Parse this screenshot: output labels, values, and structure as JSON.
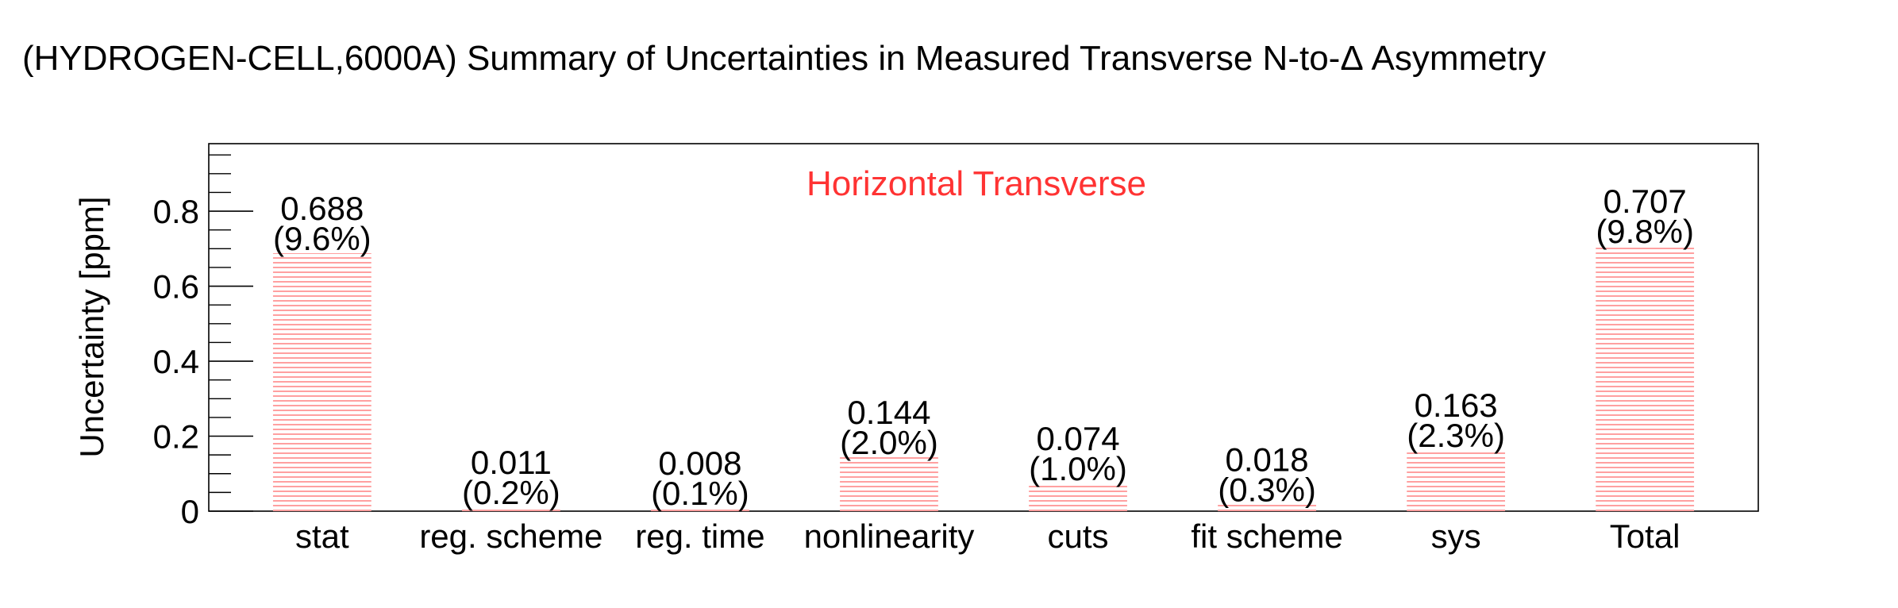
{
  "chart_data": {
    "type": "bar",
    "title": "(HYDROGEN-CELL,6000A) Summary of Uncertainties in Measured Transverse N-to-Δ Asymmetry",
    "annotation": "Horizontal Transverse",
    "xlabel": "",
    "ylabel": "Uncertainty [ppm]",
    "ylim": [
      0,
      0.98
    ],
    "yticks": [
      0,
      0.2,
      0.4,
      0.6,
      0.8
    ],
    "ytick_labels": [
      "0",
      "0.2",
      "0.4",
      "0.6",
      "0.8"
    ],
    "categories": [
      "stat",
      "reg. scheme",
      "reg. time",
      "nonlinearity",
      "cuts",
      "fit scheme",
      "sys",
      "Total"
    ],
    "values": [
      0.688,
      0.011,
      0.008,
      0.144,
      0.074,
      0.018,
      0.163,
      0.707
    ],
    "value_labels": [
      "0.688",
      "0.011",
      "0.008",
      "0.144",
      "0.074",
      "0.018",
      "0.163",
      "0.707"
    ],
    "percent_labels": [
      "(9.6%)",
      "(0.2%)",
      "(0.1%)",
      "(2.0%)",
      "(1.0%)",
      "(0.3%)",
      "(2.3%)",
      "(9.8%)"
    ],
    "grid": false,
    "bar_fill": "hatched-horizontal",
    "colors": {
      "bar_hatch": "#ff8080",
      "annotation": "#ff3333",
      "text": "#000000",
      "frame": "#000000"
    }
  }
}
